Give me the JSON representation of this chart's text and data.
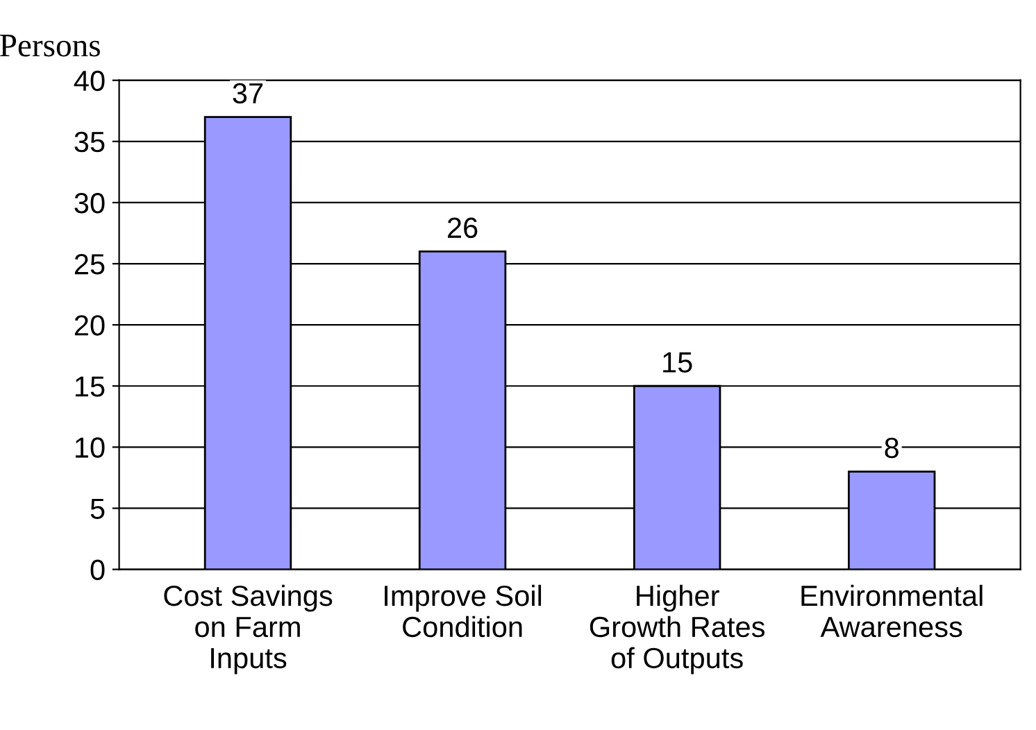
{
  "chart_data": {
    "type": "bar",
    "ylabel": "Persons",
    "categories": [
      "Cost Savings\non Farm\nInputs",
      "Improve Soil\nCondition",
      "Higher\nGrowth Rates\nof Outputs",
      "Environmental\nAwareness"
    ],
    "values": [
      37,
      26,
      15,
      8
    ],
    "color": "#9999ff",
    "ylim": [
      0,
      40
    ],
    "yticks": [
      0,
      5,
      10,
      15,
      20,
      25,
      30,
      35,
      40
    ],
    "grid": "y",
    "data_labels": true
  }
}
